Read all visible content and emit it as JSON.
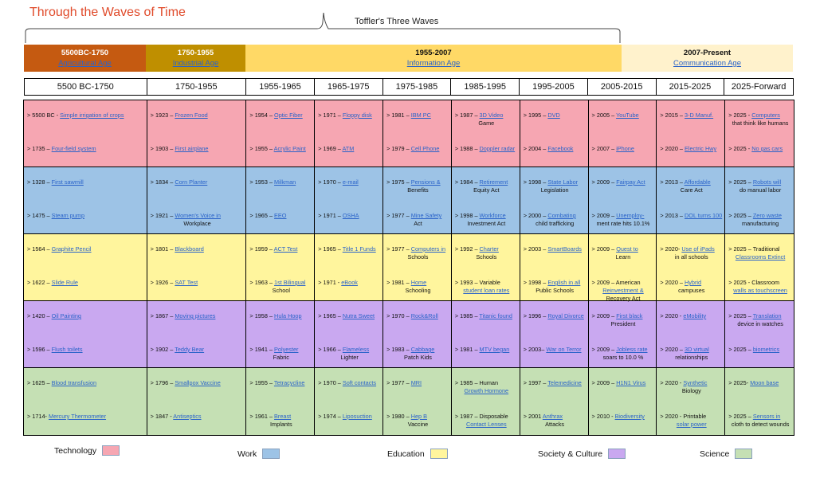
{
  "title": "Through the Waves of Time",
  "toffler_label": "Toffler's Three Waves",
  "colors": {
    "title": "#e04a2a",
    "era_agri": "#c55a11",
    "era_industrial": "#bf8f00",
    "era_info": "#ffd966",
    "era_comm": "#fff2cc",
    "technology": "#f6a6b2",
    "work": "#9dc3e6",
    "education": "#fff59d",
    "society": "#c9a8f0",
    "science": "#c5e0b4",
    "link": "#2a63c9"
  },
  "eras": [
    {
      "range": "5500BC-1750",
      "name": "Agricultural Age"
    },
    {
      "range": "1750-1955",
      "name": "Industrial Age"
    },
    {
      "range": "1955-2007",
      "name": "Information Age"
    },
    {
      "range": "2007-Present",
      "name": "Communication Age"
    }
  ],
  "decades": [
    "5500 BC-1750",
    "1750-1955",
    "1955-1965",
    "1965-1975",
    "1975-1985",
    "1985-1995",
    "1995-2005",
    "2005-2015",
    "2015-2025",
    "2025-Forward"
  ],
  "rows": [
    {
      "category": "technology",
      "cells": [
        [
          {
            "p": "> 5500 BC - ",
            "l": "Simple irrigation of crops",
            "c": ""
          },
          {
            "p": "> 1735 – ",
            "l": "Four-field system",
            "c": ""
          }
        ],
        [
          {
            "p": "> 1923 – ",
            "l": "Frozen Food",
            "c": ""
          },
          {
            "p": "> 1903 – ",
            "l": "First airplane",
            "c": ""
          }
        ],
        [
          {
            "p": "> 1954 – ",
            "l": "Optic Fiber",
            "c": ""
          },
          {
            "p": "> 1955 – ",
            "l": "Acrylic Paint",
            "c": ""
          }
        ],
        [
          {
            "p": "> 1971 – ",
            "l": "Floppy disk",
            "c": ""
          },
          {
            "p": "> 1969 – ",
            "l": "ATM",
            "c": ""
          }
        ],
        [
          {
            "p": "> 1981 – ",
            "l": "IBM PC",
            "c": ""
          },
          {
            "p": "> 1979 – ",
            "l": "Cell Phone",
            "c": ""
          }
        ],
        [
          {
            "p": "> 1987 – ",
            "l": "3D Video",
            "c": "Game"
          },
          {
            "p": "> 1988 – ",
            "l": "Doppler radar",
            "c": ""
          }
        ],
        [
          {
            "p": "> 1995 – ",
            "l": "DVD",
            "c": ""
          },
          {
            "p": "> 2004 – ",
            "l": "Facebook",
            "c": ""
          }
        ],
        [
          {
            "p": "> 2005 – ",
            "l": "YouTube",
            "c": ""
          },
          {
            "p": "> 2007 – ",
            "l": "iPhone",
            "c": ""
          }
        ],
        [
          {
            "p": "> 2015 – ",
            "l": "3-D Manuf.",
            "c": ""
          },
          {
            "p": "> 2020 – ",
            "l": "Electric Hwy",
            "c": ""
          }
        ],
        [
          {
            "p": "> 2025 - ",
            "l": "Computers",
            "c": "that  think like humans"
          },
          {
            "p": "> 2025 - ",
            "l": "No gas cars",
            "c": ""
          }
        ]
      ]
    },
    {
      "category": "work",
      "cells": [
        [
          {
            "p": "> 1328 – ",
            "l": "First sawmill",
            "c": ""
          },
          {
            "p": "> 1475 – ",
            "l": "Steam pump",
            "c": ""
          }
        ],
        [
          {
            "p": "> 1834 – ",
            "l": "Corn Planter",
            "c": ""
          },
          {
            "p": "> 1921 – ",
            "l": "Women's Voice in",
            "c": "Workplace"
          }
        ],
        [
          {
            "p": "> 1953 – ",
            "l": "Milkman",
            "c": ""
          },
          {
            "p": "> 1965 – ",
            "l": "EEO",
            "c": ""
          }
        ],
        [
          {
            "p": "> 1970 – ",
            "l": "e-mail",
            "c": ""
          },
          {
            "p": "> 1971 – ",
            "l": "OSHA",
            "c": ""
          }
        ],
        [
          {
            "p": "> 1975 – ",
            "l": "Pensions &",
            "c": "Benefits"
          },
          {
            "p": "> 1977 – ",
            "l": "Mine Safety",
            "c": "Act"
          }
        ],
        [
          {
            "p": "> 1984 – ",
            "l": "Retirement",
            "c": "Equity Act"
          },
          {
            "p": "> 1998 – ",
            "l": "Workforce",
            "c": "Investment Act"
          }
        ],
        [
          {
            "p": "> 1998 – ",
            "l": "State Labor",
            "c": "Legislation"
          },
          {
            "p": "> 2000 – ",
            "l": "Combating",
            "c": "child trafficking"
          }
        ],
        [
          {
            "p": "> 2009 – ",
            "l": "Fairpay Act",
            "c": ""
          },
          {
            "p": "> 2009 – ",
            "l": "Unemploy-",
            "c": "ment rate hits 10.1%"
          }
        ],
        [
          {
            "p": "> 2013 – ",
            "l": "Affordable",
            "c": "Care Act"
          },
          {
            "p": "> 2013 – ",
            "l": "DOL turns 100",
            "c": ""
          }
        ],
        [
          {
            "p": "> 2025 – ",
            "l": "Robots will",
            "c": "do manual labor"
          },
          {
            "p": "> 2025 – ",
            "l": "Zero waste",
            "c": "manufacturing"
          }
        ]
      ]
    },
    {
      "category": "education",
      "cells": [
        [
          {
            "p": "> 1564 – ",
            "l": "Graphite Pencil",
            "c": ""
          },
          {
            "p": "> 1622 – ",
            "l": "Slide Rule",
            "c": ""
          }
        ],
        [
          {
            "p": "> 1801 – ",
            "l": "Blackboard",
            "c": ""
          },
          {
            "p": "> 1926 – ",
            "l": "SAT Test",
            "c": ""
          }
        ],
        [
          {
            "p": "> 1959 – ",
            "l": "ACT Test",
            "c": ""
          },
          {
            "p": "> 1963 – ",
            "l": "1st Bilingual",
            "c": "School"
          }
        ],
        [
          {
            "p": "> 1965 – ",
            "l": "Title 1 Funds",
            "c": ""
          },
          {
            "p": "> 1971 - ",
            "l": "eBook",
            "c": ""
          }
        ],
        [
          {
            "p": "> 1977 – ",
            "l": "Computers in",
            "c": "Schools"
          },
          {
            "p": "> 1981 – ",
            "l": "Home",
            "c": "Schooling"
          }
        ],
        [
          {
            "p": "> 1992 – ",
            "l": "Charter",
            "c": "Schools"
          },
          {
            "p": "> 1993 – Variable ",
            "l": "",
            "c": "student loan rates",
            "cl": true
          }
        ],
        [
          {
            "p": "> 2003 – ",
            "l": "SmartBoards",
            "c": ""
          },
          {
            "p": "> 1998 – ",
            "l": "English in all",
            "c": "Public Schools"
          }
        ],
        [
          {
            "p": "> 2009 – ",
            "l": "Quest to",
            "c": "Learn"
          },
          {
            "p": "> 2009 – American ",
            "l": "",
            "c": "Reinvestment &",
            "cl": true,
            "c2": "Recovery Act"
          }
        ],
        [
          {
            "p": "> 2020- ",
            "l": "Use of iPads",
            "c": "in all schools"
          },
          {
            "p": "> 2020 – ",
            "l": "Hybrid",
            "c": "campuses"
          }
        ],
        [
          {
            "p": "> 2025 – Traditional ",
            "l": "",
            "c": "Classrooms  Extinct",
            "cl": true
          },
          {
            "p": "> 2025 - Classroom ",
            "l": "",
            "c": "walls as touchscreen",
            "cl": true
          }
        ]
      ]
    },
    {
      "category": "society",
      "cells": [
        [
          {
            "p": "> 1420 – ",
            "l": "Oil Painting",
            "c": ""
          },
          {
            "p": "> 1596 – ",
            "l": "Flush toilets",
            "c": ""
          }
        ],
        [
          {
            "p": "> 1867 – ",
            "l": "Moving pictures",
            "c": ""
          },
          {
            "p": "> 1902 – ",
            "l": "Teddy Bear",
            "c": ""
          }
        ],
        [
          {
            "p": "> 1958 – ",
            "l": "Hula Hoop",
            "c": ""
          },
          {
            "p": "> 1941 – ",
            "l": "Polyester",
            "c": "Fabric"
          }
        ],
        [
          {
            "p": "> 1965 – ",
            "l": "Nutra Sweet",
            "c": ""
          },
          {
            "p": "> 1966 – ",
            "l": "Flameless",
            "c": "Lighter"
          }
        ],
        [
          {
            "p": "> 1970 – ",
            "l": "Rock&Roll",
            "c": ""
          },
          {
            "p": "> 1983 – ",
            "l": "Cabbage",
            "c": "Patch Kids"
          }
        ],
        [
          {
            "p": "> 1985 – ",
            "l": "Titanic found",
            "c": ""
          },
          {
            "p": "> 1981 – ",
            "l": "MTV began",
            "c": ""
          }
        ],
        [
          {
            "p": "> 1996 – ",
            "l": "Royal Divorce",
            "c": ""
          },
          {
            "p": "> 2003– ",
            "l": "War on Terror",
            "c": ""
          }
        ],
        [
          {
            "p": "> 2009 – ",
            "l": "First black",
            "c": "President"
          },
          {
            "p": "> 2009 – ",
            "l": "Jobless rate",
            "c": "soars to 10.0 %"
          }
        ],
        [
          {
            "p": "> 2020 - ",
            "l": "eMobility",
            "c": ""
          },
          {
            "p": "> 2020 – ",
            "l": "3D virtual",
            "c": "relationships"
          }
        ],
        [
          {
            "p": "> 2025 – ",
            "l": "Translation",
            "c": "device in watches"
          },
          {
            "p": "> 2025 – ",
            "l": "biometrics",
            "c": ""
          }
        ]
      ]
    },
    {
      "category": "science",
      "cells": [
        [
          {
            "p": "> 1625 – ",
            "l": "Blood transfusion",
            "c": ""
          },
          {
            "p": "> 1714- ",
            "l": "Mercury Thermometer",
            "c": ""
          }
        ],
        [
          {
            "p": "> 1796 – ",
            "l": "Smallpox Vaccine",
            "c": ""
          },
          {
            "p": "> 1847 - ",
            "l": "Antiseptics",
            "c": ""
          }
        ],
        [
          {
            "p": "> 1955 – ",
            "l": "Tetracycline",
            "c": ""
          },
          {
            "p": "> 1961 – ",
            "l": "Breast",
            "c": "Implants"
          }
        ],
        [
          {
            "p": "> 1970 – ",
            "l": "Soft contacts",
            "c": ""
          },
          {
            "p": "> 1974 – ",
            "l": "Liposuction",
            "c": ""
          }
        ],
        [
          {
            "p": "> 1977 – ",
            "l": "MRI",
            "c": ""
          },
          {
            "p": "> 1980 – ",
            "l": "Hep B",
            "c": "Vaccine"
          }
        ],
        [
          {
            "p": "> 1985 – Human ",
            "l": "",
            "c": "Growth Hormone",
            "cl": true
          },
          {
            "p": "> 1987 – Disposable ",
            "l": "",
            "c": "Contact Lenses",
            "cl": true
          }
        ],
        [
          {
            "p": ">  1997 – ",
            "l": "Telemedicine",
            "c": ""
          },
          {
            "p": "> 2001 ",
            "l": "Anthrax",
            "c": "Attacks"
          }
        ],
        [
          {
            "p": "> 2009 – ",
            "l": "H1N1 Virus",
            "c": ""
          },
          {
            "p": "> 2010  -  ",
            "l": "Biodiversity",
            "c": ""
          }
        ],
        [
          {
            "p": "> 2020 - ",
            "l": "Synthetic",
            "c": "Biology"
          },
          {
            "p": "> 2020 -  Printable ",
            "l": "",
            "c": "solar power",
            "cl": true
          }
        ],
        [
          {
            "p": "> 2025- ",
            "l": "Moon base",
            "c": ""
          },
          {
            "p": "> 2025 – ",
            "l": "Sensors in",
            "c": "cloth to detect wounds"
          }
        ]
      ]
    }
  ],
  "legend": [
    {
      "label": "Technology",
      "category": "technology"
    },
    {
      "label": "Work",
      "category": "work"
    },
    {
      "label": "Education",
      "category": "education"
    },
    {
      "label": "Society & Culture",
      "category": "society"
    },
    {
      "label": "Science",
      "category": "science"
    }
  ]
}
